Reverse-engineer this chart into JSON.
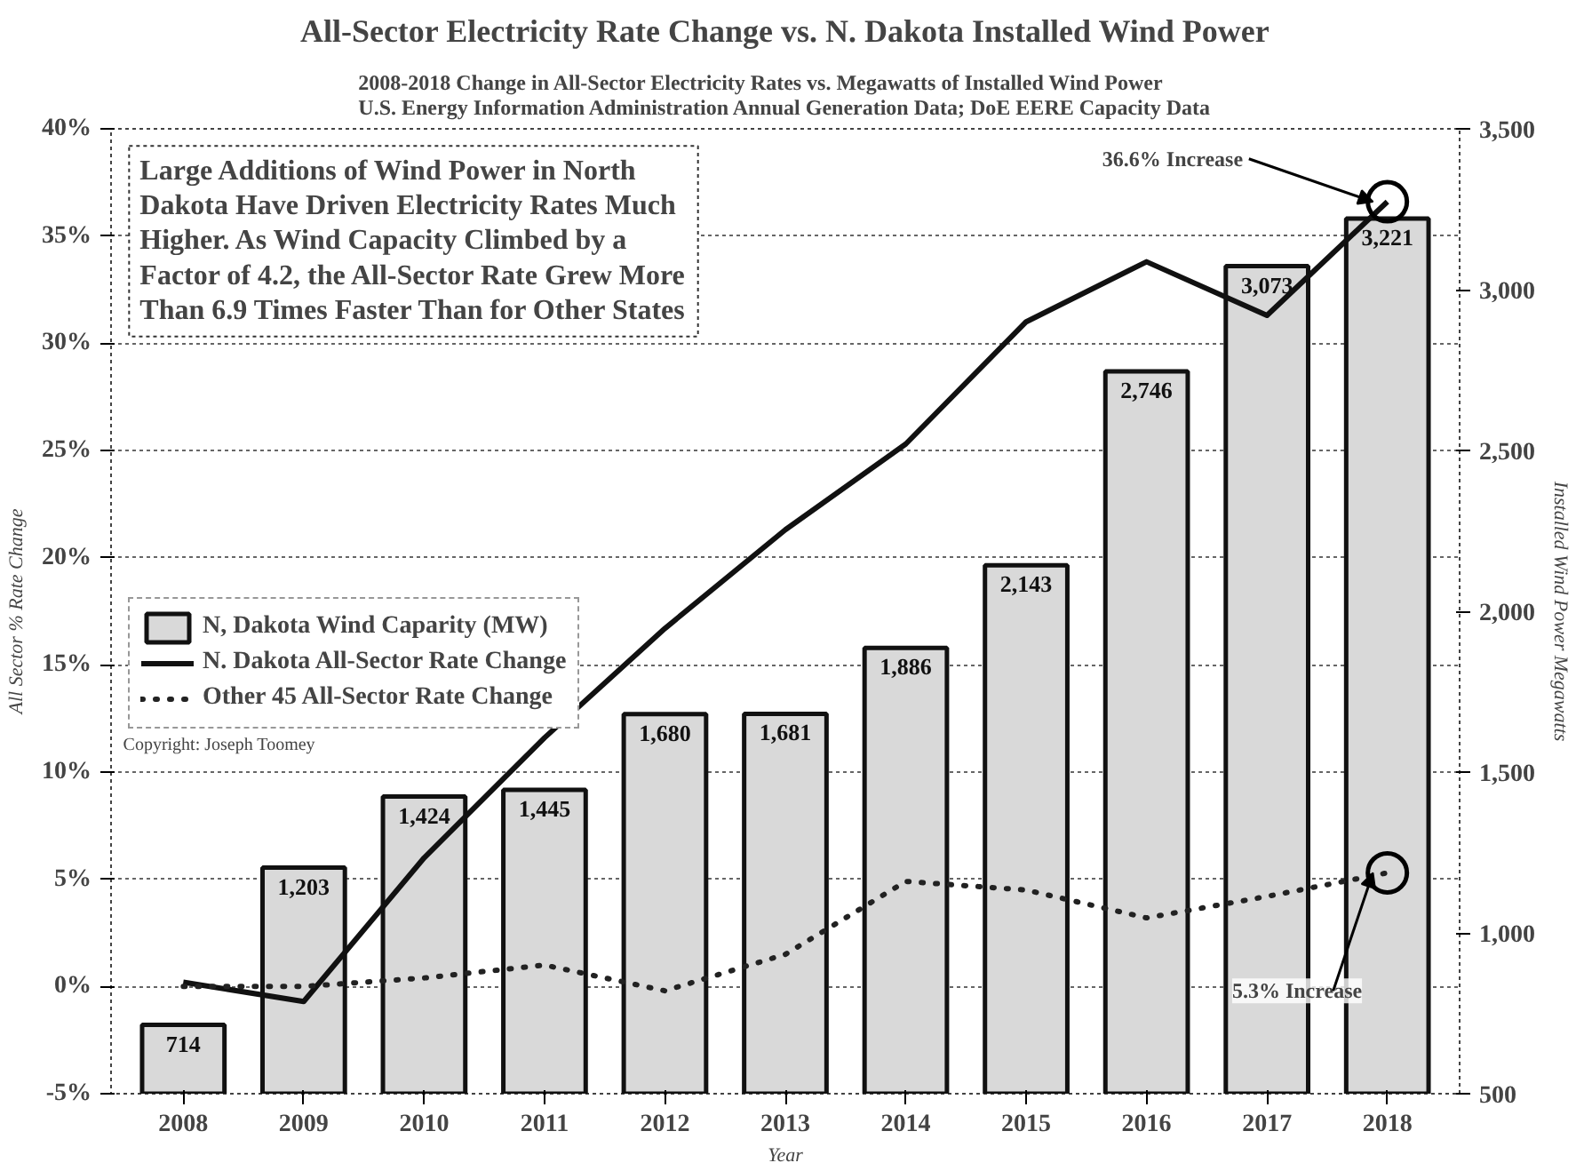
{
  "chart_data": {
    "type": "bar",
    "title": "All-Sector Electricity Rate Change vs. N. Dakota Installed Wind Power",
    "subtitle": "2008-2018 Change in All-Sector Electricity Rates vs. Megawatts of Installed Wind Power\nU.S. Energy Information Administration Annual Generation Data; DoE EERE Capacity Data",
    "xlabel": "Year",
    "ylabel": "All Sector % Rate Change",
    "y2label": "Installed Wind Power Megawatts",
    "categories": [
      "2008",
      "2009",
      "2010",
      "2011",
      "2012",
      "2013",
      "2014",
      "2015",
      "2016",
      "2017",
      "2018"
    ],
    "series": [
      {
        "name": "N, Dakota Wind Caparity (MW)",
        "axis": "y2",
        "color": "#d9d9d9",
        "values": [
          714,
          1203,
          1424,
          1445,
          1680,
          1681,
          1886,
          2143,
          2746,
          3073,
          3221
        ],
        "value_labels": [
          "714",
          "1,203",
          "1,424",
          "1,445",
          "1,680",
          "1,681",
          "1,886",
          "2,143",
          "2,746",
          "3,073",
          "3,221"
        ]
      },
      {
        "name": "N. Dakota All-Sector Rate Change",
        "type": "line",
        "line_style": "solid",
        "color": "#111111",
        "values": [
          0.2,
          -0.7,
          6,
          11.6,
          16.7,
          21.3,
          25.3,
          31,
          33.8,
          31.3,
          36.6
        ]
      },
      {
        "name": "Other 45 All-Sector Rate Change",
        "type": "line",
        "line_style": "dotted",
        "color": "#222222",
        "values": [
          0,
          0,
          0.4,
          1,
          -0.2,
          1.5,
          4.9,
          4.5,
          3.2,
          4.2,
          5.3
        ]
      }
    ],
    "ylim": [
      -5,
      40
    ],
    "yticks": [
      {
        "value": -5,
        "label": "-5%"
      },
      {
        "value": 0,
        "label": "0%"
      },
      {
        "value": 5,
        "label": "5%"
      },
      {
        "value": 10,
        "label": "10%"
      },
      {
        "value": 15,
        "label": "15%"
      },
      {
        "value": 20,
        "label": "20%"
      },
      {
        "value": 25,
        "label": "25%"
      },
      {
        "value": 30,
        "label": "30%"
      },
      {
        "value": 35,
        "label": "35%"
      },
      {
        "value": 40,
        "label": "40%"
      }
    ],
    "y2lim": [
      500,
      3500
    ],
    "y2ticks": [
      500,
      {
        "value": 1000,
        "label": "1,000"
      },
      {
        "value": 1500,
        "label": "1,500"
      },
      {
        "value": 2000,
        "label": "2,000"
      },
      {
        "value": 2500,
        "label": "2,500"
      },
      {
        "value": 3000,
        "label": "3,000"
      },
      {
        "value": 3500,
        "label": "3,500"
      }
    ],
    "grid": "y",
    "legend": "left",
    "annotations": [
      "Large Additions of Wind Power in North\nDakota Have Driven Electricity Rates Much\nHigher. As Wind Capacity Climbed by a\nFactor of 4.2, the All-Sector Rate Grew More\nThan 6.9 Times Faster Than for Other States",
      {
        "text": "36.6% Increase",
        "x": "2018",
        "y": 36.6
      },
      {
        "text": "5.3% Increase",
        "x": "2018",
        "y": 5.3
      },
      "Copyright: Joseph Toomey"
    ]
  }
}
